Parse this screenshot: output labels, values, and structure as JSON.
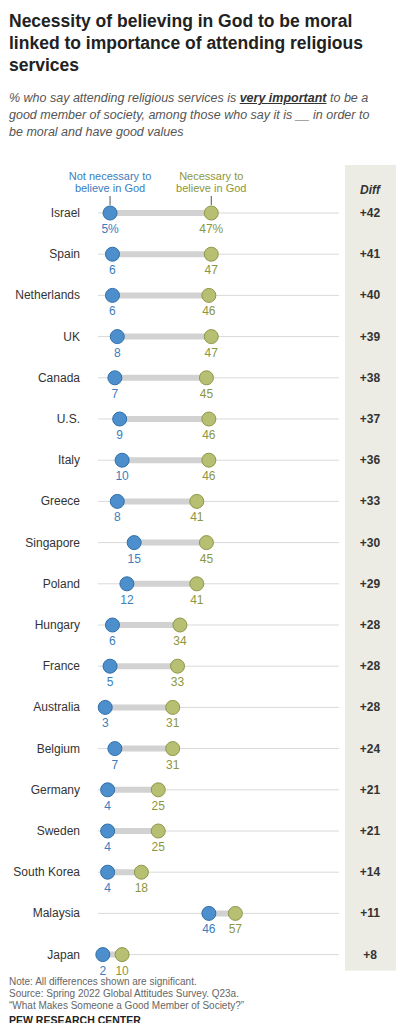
{
  "chart_data": {
    "type": "dot",
    "orientation": "horizontal",
    "title": "Necessity of believing in God to be moral linked to importance of attending religious services",
    "subtitle": [
      "% who say attending religious services is ",
      "very important",
      " to be a good member of society, among those who say it is __ in order to be moral and have good values"
    ],
    "categories": [
      "Israel",
      "Spain",
      "Netherlands",
      "UK",
      "Canada",
      "U.S.",
      "Italy",
      "Greece",
      "Singapore",
      "Poland",
      "Hungary",
      "France",
      "Australia",
      "Belgium",
      "Germany",
      "Sweden",
      "South Korea",
      "Malaysia",
      "Japan"
    ],
    "series": [
      {
        "name": "Not necessary to believe in God",
        "color": "#4d8fcc",
        "values": [
          5,
          6,
          6,
          8,
          7,
          9,
          10,
          8,
          15,
          12,
          6,
          5,
          3,
          7,
          4,
          4,
          4,
          46,
          2
        ],
        "value_labels": [
          "5%",
          "6",
          "6",
          "8",
          "7",
          "9",
          "10",
          "8",
          "15",
          "12",
          "6",
          "5",
          "3",
          "7",
          "4",
          "4",
          "4",
          "46",
          "2"
        ]
      },
      {
        "name": "Necessary to believe in God",
        "color": "#b6bf72",
        "values": [
          47,
          47,
          46,
          47,
          45,
          46,
          46,
          41,
          45,
          41,
          34,
          33,
          31,
          31,
          25,
          25,
          18,
          57,
          10
        ],
        "value_labels": [
          "47%",
          "47",
          "46",
          "47",
          "45",
          "46",
          "46",
          "41",
          "45",
          "41",
          "34",
          "33",
          "31",
          "31",
          "25",
          "25",
          "18",
          "57",
          "10"
        ]
      }
    ],
    "diff": {
      "name": "Diff",
      "values": [
        42,
        41,
        40,
        39,
        38,
        37,
        36,
        33,
        30,
        29,
        28,
        28,
        28,
        24,
        21,
        21,
        14,
        11,
        8
      ],
      "value_labels": [
        "+42",
        "+41",
        "+40",
        "+39",
        "+38",
        "+37",
        "+36",
        "+33",
        "+30",
        "+29",
        "+28",
        "+28",
        "+28",
        "+24",
        "+21",
        "+21",
        "+14",
        "+11",
        "+8"
      ]
    },
    "xlim": [
      0,
      100
    ],
    "tick_labels": false,
    "grid": false,
    "data_labels": true,
    "notes": [
      "Note: All differences shown are significant.",
      "Source: Spring 2022 Global Attitudes Survey. Q23a.",
      "“What Makes Someone a Good Member of Society?”",
      "PEW RESEARCH CENTER"
    ]
  }
}
